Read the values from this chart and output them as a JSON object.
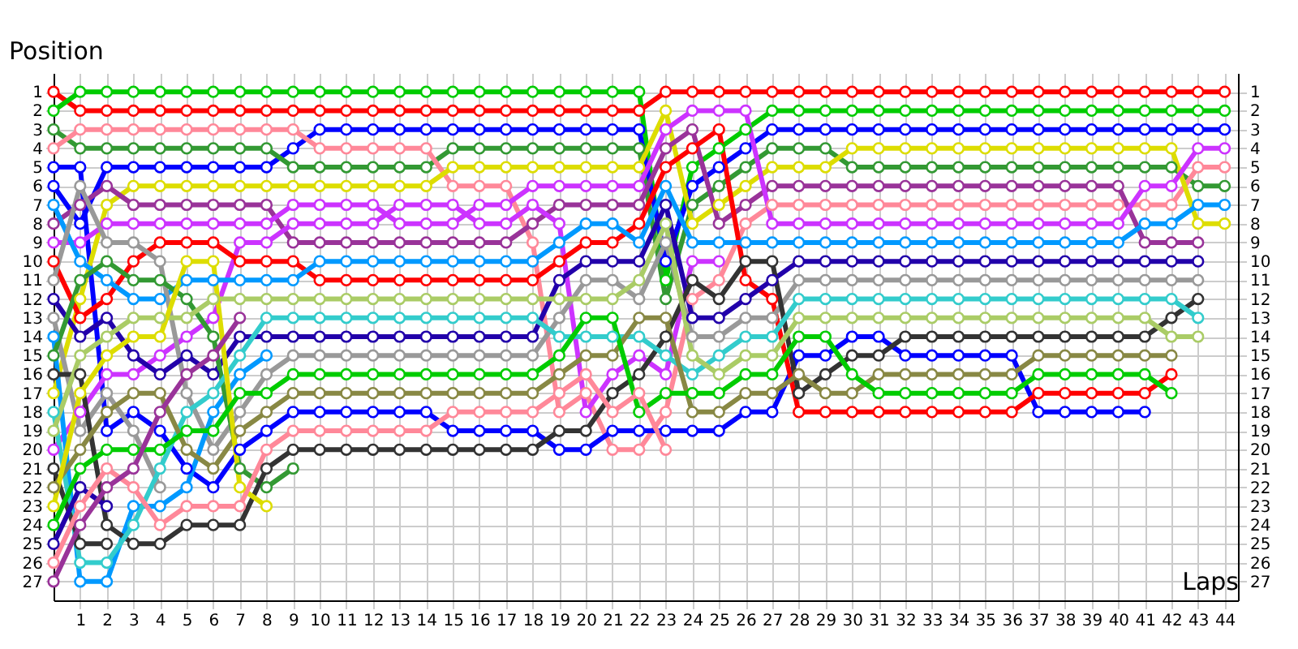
{
  "chart_data": {
    "type": "line",
    "xlabel": "Laps",
    "ylabel": "Position",
    "x": [
      0,
      1,
      2,
      3,
      4,
      5,
      6,
      7,
      8,
      9,
      10,
      11,
      12,
      13,
      14,
      15,
      16,
      17,
      18,
      19,
      20,
      21,
      22,
      23,
      24,
      25,
      26,
      27,
      28,
      29,
      30,
      31,
      32,
      33,
      34,
      35,
      36,
      37,
      38,
      39,
      40,
      41,
      42,
      43,
      44
    ],
    "xlim": [
      0,
      44.5
    ],
    "xticks": [
      1,
      2,
      3,
      4,
      5,
      6,
      7,
      8,
      9,
      10,
      11,
      12,
      13,
      14,
      15,
      16,
      17,
      18,
      19,
      20,
      21,
      22,
      23,
      24,
      25,
      26,
      27,
      28,
      29,
      30,
      31,
      32,
      33,
      34,
      35,
      36,
      37,
      38,
      39,
      40,
      41,
      42,
      43,
      44
    ],
    "ylim": [
      28,
      0
    ],
    "yticks": [
      1,
      2,
      3,
      4,
      5,
      6,
      7,
      8,
      9,
      10,
      11,
      12,
      13,
      14,
      15,
      16,
      17,
      18,
      19,
      20,
      21,
      22,
      23,
      24,
      25,
      26,
      27
    ],
    "y2lim": [
      28,
      0
    ],
    "y2ticks": [
      1,
      2,
      3,
      4,
      5,
      6,
      7,
      8,
      9,
      10,
      11,
      12,
      13,
      14,
      15,
      16,
      17,
      18,
      19,
      20,
      21,
      22,
      23,
      24,
      25,
      26,
      27
    ],
    "grid": true,
    "legend": false,
    "marker": "circle",
    "line_style": "solid",
    "series": [
      {
        "color": "#ff0000",
        "values": [
          1,
          2,
          2,
          2,
          2,
          2,
          2,
          2,
          2,
          2,
          2,
          2,
          2,
          2,
          2,
          2,
          2,
          2,
          2,
          2,
          2,
          2,
          2,
          1,
          1,
          1,
          1,
          1,
          1,
          1,
          1,
          1,
          1,
          1,
          1,
          1,
          1,
          1,
          1,
          1,
          1,
          1,
          1,
          1,
          1
        ]
      },
      {
        "color": "#00cc00",
        "values": [
          2,
          1,
          1,
          1,
          1,
          1,
          1,
          1,
          1,
          1,
          1,
          1,
          1,
          1,
          1,
          1,
          1,
          1,
          1,
          1,
          1,
          1,
          1,
          11,
          5,
          4,
          3,
          2,
          2,
          2,
          2,
          2,
          2,
          2,
          2,
          2,
          2,
          2,
          2,
          2,
          2,
          2,
          2,
          2,
          2
        ]
      },
      {
        "color": "#0000ff",
        "values": [
          6,
          8,
          5,
          5,
          5,
          5,
          5,
          5,
          5,
          4,
          3,
          3,
          3,
          3,
          3,
          3,
          3,
          3,
          3,
          3,
          3,
          3,
          3,
          10,
          6,
          5,
          4,
          3,
          3,
          3,
          3,
          3,
          3,
          3,
          3,
          3,
          3,
          3,
          3,
          3,
          3,
          3,
          3,
          3,
          3
        ]
      },
      {
        "color": "#339933",
        "values": [
          3,
          4,
          4,
          4,
          4,
          4,
          4,
          4,
          4,
          5,
          5,
          5,
          5,
          5,
          5,
          4,
          4,
          4,
          4,
          4,
          4,
          4,
          4,
          12,
          7,
          6,
          5,
          4,
          4,
          4,
          5,
          5,
          5,
          5,
          5,
          5,
          5,
          5,
          5,
          5,
          5,
          5,
          5,
          6,
          6
        ]
      },
      {
        "color": "#ff8899",
        "values": [
          4,
          3,
          3,
          3,
          3,
          3,
          3,
          3,
          3,
          3,
          4,
          4,
          4,
          4,
          4,
          6,
          6,
          6,
          9,
          18,
          17,
          20,
          20,
          18,
          12,
          11,
          8,
          7,
          7,
          7,
          7,
          7,
          7,
          7,
          7,
          7,
          7,
          7,
          7,
          7,
          7,
          7,
          7,
          5,
          5
        ]
      },
      {
        "color": "#0000ff",
        "values": [
          5,
          5,
          19,
          18,
          19,
          21,
          22,
          20,
          19,
          18,
          18,
          18,
          18,
          18,
          18,
          19,
          19,
          19,
          19,
          20,
          20,
          19,
          19,
          19,
          19,
          19,
          18,
          18,
          15,
          15,
          14,
          14,
          15,
          15,
          15,
          15,
          15,
          18,
          18,
          18,
          18,
          18,
          null,
          null,
          null
        ]
      },
      {
        "color": "#dddd00",
        "values": [
          17,
          12,
          7,
          6,
          6,
          6,
          6,
          6,
          6,
          6,
          6,
          6,
          6,
          6,
          6,
          5,
          5,
          5,
          5,
          5,
          5,
          5,
          5,
          2,
          8,
          7,
          6,
          5,
          5,
          5,
          4,
          4,
          4,
          4,
          4,
          4,
          4,
          4,
          4,
          4,
          4,
          4,
          4,
          8,
          8
        ]
      },
      {
        "color": "#993399",
        "values": [
          8,
          7,
          6,
          7,
          7,
          7,
          7,
          7,
          7,
          9,
          9,
          9,
          9,
          9,
          9,
          9,
          9,
          9,
          8,
          7,
          7,
          7,
          7,
          4,
          3,
          8,
          7,
          6,
          6,
          6,
          6,
          6,
          6,
          6,
          6,
          6,
          6,
          6,
          6,
          6,
          6,
          9,
          9,
          9,
          null
        ]
      },
      {
        "color": "#cc33ff",
        "values": [
          9,
          9,
          8,
          8,
          8,
          8,
          8,
          8,
          8,
          7,
          7,
          7,
          7,
          8,
          8,
          8,
          7,
          7,
          6,
          6,
          6,
          6,
          6,
          3,
          2,
          2,
          2,
          8,
          8,
          8,
          8,
          8,
          8,
          8,
          8,
          8,
          8,
          8,
          8,
          8,
          8,
          6,
          6,
          4,
          4
        ]
      },
      {
        "color": "#cc33ff",
        "values": [
          20,
          18,
          16,
          16,
          15,
          14,
          13,
          9,
          9,
          8,
          8,
          8,
          8,
          7,
          7,
          7,
          8,
          8,
          7,
          8,
          18,
          16,
          15,
          16,
          10,
          10,
          null,
          null,
          null,
          null,
          null,
          null,
          null,
          null,
          null,
          null,
          null,
          null,
          null,
          null,
          null,
          null,
          null,
          null,
          null
        ]
      },
      {
        "color": "#ff0000",
        "values": [
          10,
          13,
          12,
          10,
          9,
          9,
          9,
          10,
          10,
          10,
          11,
          11,
          11,
          11,
          11,
          11,
          11,
          11,
          11,
          10,
          9,
          9,
          8,
          5,
          4,
          3,
          11,
          12,
          18,
          18,
          18,
          18,
          18,
          18,
          18,
          18,
          18,
          17,
          17,
          17,
          17,
          17,
          16,
          null,
          null
        ]
      },
      {
        "color": "#0099ff",
        "values": [
          7,
          10,
          11,
          12,
          12,
          11,
          11,
          11,
          11,
          11,
          10,
          10,
          10,
          10,
          10,
          10,
          10,
          10,
          10,
          9,
          8,
          8,
          9,
          6,
          9,
          9,
          9,
          9,
          9,
          9,
          9,
          9,
          9,
          9,
          9,
          9,
          9,
          9,
          9,
          9,
          9,
          8,
          8,
          7,
          7
        ]
      },
      {
        "color": "#999999",
        "values": [
          11,
          6,
          9,
          9,
          10,
          17,
          20,
          18,
          16,
          15,
          15,
          15,
          15,
          15,
          15,
          15,
          15,
          15,
          15,
          13,
          11,
          11,
          12,
          9,
          14,
          14,
          13,
          13,
          11,
          11,
          11,
          11,
          11,
          11,
          11,
          11,
          11,
          11,
          11,
          11,
          11,
          11,
          11,
          11,
          null
        ]
      },
      {
        "color": "#2200aa",
        "values": [
          12,
          14,
          13,
          15,
          16,
          15,
          16,
          14,
          14,
          14,
          14,
          14,
          14,
          14,
          14,
          14,
          14,
          14,
          14,
          11,
          10,
          10,
          10,
          7,
          13,
          13,
          12,
          11,
          10,
          10,
          10,
          10,
          10,
          10,
          10,
          10,
          10,
          10,
          10,
          10,
          10,
          10,
          10,
          10,
          null
        ]
      },
      {
        "color": "#999999",
        "values": [
          13,
          19,
          17,
          19,
          22,
          null,
          null,
          null,
          null,
          null,
          null,
          null,
          null,
          null,
          null,
          null,
          null,
          null,
          null,
          null,
          null,
          null,
          null,
          null,
          null,
          null,
          null,
          null,
          null,
          null,
          null,
          null,
          null,
          null,
          null,
          null,
          null,
          null,
          null,
          null,
          null,
          null,
          null,
          null,
          null
        ]
      },
      {
        "color": "#0099ff",
        "values": [
          14,
          27,
          27,
          23,
          23,
          22,
          18,
          16,
          15,
          null,
          null,
          null,
          null,
          null,
          null,
          null,
          null,
          null,
          null,
          null,
          null,
          null,
          null,
          null,
          null,
          null,
          null,
          null,
          null,
          null,
          null,
          null,
          null,
          null,
          null,
          null,
          null,
          null,
          null,
          null,
          null,
          null,
          null,
          null,
          null
        ]
      },
      {
        "color": "#339933",
        "values": [
          15,
          11,
          10,
          11,
          11,
          12,
          14,
          21,
          22,
          21,
          null,
          null,
          null,
          null,
          null,
          null,
          null,
          null,
          null,
          null,
          null,
          null,
          null,
          null,
          null,
          null,
          null,
          null,
          null,
          null,
          null,
          null,
          null,
          null,
          null,
          null,
          null,
          null,
          null,
          null,
          null,
          null,
          null,
          null,
          null
        ]
      },
      {
        "color": "#333333",
        "values": [
          16,
          16,
          24,
          25,
          25,
          24,
          24,
          24,
          21,
          20,
          20,
          20,
          20,
          20,
          20,
          20,
          20,
          20,
          20,
          19,
          19,
          17,
          16,
          14,
          11,
          12,
          10,
          10,
          17,
          16,
          15,
          15,
          14,
          14,
          14,
          14,
          14,
          14,
          14,
          14,
          14,
          14,
          13,
          12,
          null
        ]
      },
      {
        "color": "#33cccc",
        "values": [
          18,
          26,
          26,
          24,
          21,
          18,
          17,
          15,
          13,
          13,
          13,
          13,
          13,
          13,
          13,
          13,
          13,
          13,
          13,
          14,
          14,
          14,
          14,
          15,
          16,
          15,
          14,
          14,
          12,
          12,
          12,
          12,
          12,
          12,
          12,
          12,
          12,
          12,
          12,
          12,
          12,
          12,
          12,
          13,
          null
        ]
      },
      {
        "color": "#aacc66",
        "values": [
          19,
          15,
          14,
          13,
          13,
          13,
          12,
          12,
          12,
          12,
          12,
          12,
          12,
          12,
          12,
          12,
          12,
          12,
          12,
          12,
          12,
          12,
          11,
          8,
          15,
          16,
          15,
          15,
          13,
          13,
          13,
          13,
          13,
          13,
          13,
          13,
          13,
          13,
          13,
          13,
          13,
          13,
          14,
          14,
          null
        ]
      },
      {
        "color": "#333333",
        "values": [
          21,
          25,
          25,
          null,
          null,
          null,
          null,
          null,
          null,
          null,
          null,
          null,
          null,
          null,
          null,
          null,
          null,
          null,
          null,
          null,
          null,
          null,
          null,
          null,
          null,
          null,
          null,
          null,
          null,
          null,
          null,
          null,
          null,
          null,
          null,
          null,
          null,
          null,
          null,
          null,
          null,
          null,
          null,
          null,
          null
        ]
      },
      {
        "color": "#888844",
        "values": [
          22,
          20,
          18,
          17,
          17,
          20,
          21,
          19,
          18,
          17,
          17,
          17,
          17,
          17,
          17,
          17,
          17,
          17,
          17,
          16,
          15,
          15,
          13,
          13,
          18,
          18,
          17,
          17,
          16,
          17,
          17,
          16,
          16,
          16,
          16,
          16,
          16,
          15,
          15,
          15,
          15,
          15,
          15,
          null,
          null
        ]
      },
      {
        "color": "#dddd00",
        "values": [
          23,
          17,
          15,
          14,
          14,
          10,
          10,
          22,
          23,
          null,
          null,
          null,
          null,
          null,
          null,
          null,
          null,
          null,
          null,
          null,
          null,
          null,
          null,
          null,
          null,
          null,
          null,
          null,
          null,
          null,
          null,
          null,
          null,
          null,
          null,
          null,
          null,
          null,
          null,
          null,
          null,
          null,
          null,
          null,
          null
        ]
      },
      {
        "color": "#00cc00",
        "values": [
          24,
          21,
          20,
          20,
          20,
          19,
          19,
          17,
          17,
          16,
          16,
          16,
          16,
          16,
          16,
          16,
          16,
          16,
          16,
          15,
          13,
          13,
          18,
          17,
          17,
          17,
          16,
          16,
          14,
          14,
          16,
          17,
          17,
          17,
          17,
          17,
          17,
          16,
          16,
          16,
          16,
          16,
          17,
          null,
          null
        ]
      },
      {
        "color": "#2200aa",
        "values": [
          25,
          22,
          23,
          null,
          null,
          null,
          null,
          null,
          null,
          null,
          null,
          null,
          null,
          null,
          null,
          null,
          null,
          null,
          null,
          null,
          null,
          null,
          null,
          null,
          null,
          null,
          null,
          null,
          null,
          null,
          null,
          null,
          null,
          null,
          null,
          null,
          null,
          null,
          null,
          null,
          null,
          null,
          null,
          null,
          null
        ]
      },
      {
        "color": "#ff8899",
        "values": [
          26,
          23,
          21,
          22,
          24,
          23,
          23,
          23,
          20,
          19,
          19,
          19,
          19,
          19,
          19,
          18,
          18,
          18,
          18,
          17,
          16,
          18,
          17,
          20,
          null,
          null,
          null,
          null,
          null,
          null,
          null,
          null,
          null,
          null,
          null,
          null,
          null,
          null,
          null,
          null,
          null,
          null,
          null,
          null,
          null
        ]
      },
      {
        "color": "#993399",
        "values": [
          27,
          24,
          22,
          21,
          18,
          16,
          15,
          13,
          null,
          null,
          null,
          null,
          null,
          null,
          null,
          null,
          null,
          null,
          null,
          null,
          null,
          null,
          null,
          null,
          null,
          null,
          null,
          null,
          null,
          null,
          null,
          null,
          null,
          null,
          null,
          null,
          null,
          null,
          null,
          null,
          null,
          null,
          null,
          null,
          null
        ]
      }
    ]
  }
}
